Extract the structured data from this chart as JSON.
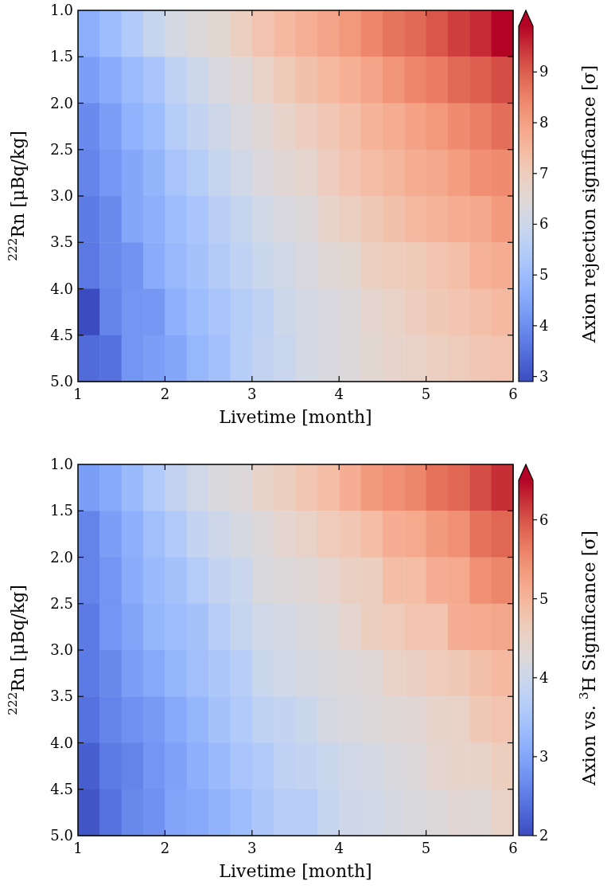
{
  "chart_data": [
    {
      "type": "heatmap",
      "xlabel": "Livetime [month]",
      "ylabel": "$^{222}$Rn [μBq/kg]",
      "clabel": "Axion rejection significance [σ]",
      "xlim": [
        1,
        6
      ],
      "xticks": [
        1,
        2,
        3,
        4,
        5,
        6
      ],
      "ylim": [
        5.0,
        1.0
      ],
      "yticks": [
        {
          "value": 1.0,
          "label": "1.0"
        },
        {
          "value": 1.5,
          "label": "1.5"
        },
        {
          "value": 2.0,
          "label": "2.0"
        },
        {
          "value": 2.5,
          "label": "2.5"
        },
        {
          "value": 3.0,
          "label": "3.0"
        },
        {
          "value": 3.5,
          "label": "3.5"
        },
        {
          "value": 4.0,
          "label": "4.0"
        },
        {
          "value": 4.5,
          "label": "4.5"
        },
        {
          "value": 5.0,
          "label": "5.0"
        }
      ],
      "clim": [
        2.9,
        9.9
      ],
      "cticks": [
        3,
        4,
        5,
        6,
        7,
        8,
        9
      ],
      "cells": [
        [
          4.65,
          5.0,
          5.4,
          5.85,
          6.2,
          6.4,
          6.6,
          6.9,
          7.25,
          7.5,
          7.7,
          7.9,
          8.15,
          8.45,
          8.7,
          8.85,
          9.1,
          9.35,
          9.55,
          9.9
        ],
        [
          4.3,
          4.6,
          4.95,
          5.2,
          5.7,
          6.0,
          6.3,
          6.45,
          6.8,
          7.05,
          7.3,
          7.5,
          7.7,
          7.9,
          8.2,
          8.45,
          8.6,
          8.85,
          9.0,
          9.2
        ],
        [
          3.95,
          4.3,
          4.75,
          5.0,
          5.5,
          5.8,
          6.05,
          6.3,
          6.5,
          6.75,
          6.95,
          7.15,
          7.35,
          7.6,
          7.75,
          7.95,
          8.15,
          8.35,
          8.55,
          8.8
        ],
        [
          3.85,
          4.2,
          4.5,
          4.8,
          5.2,
          5.5,
          5.85,
          6.1,
          6.35,
          6.55,
          6.65,
          6.95,
          7.2,
          7.4,
          7.55,
          7.75,
          7.85,
          8.05,
          8.3,
          8.35
        ],
        [
          3.7,
          3.95,
          4.5,
          4.65,
          5.0,
          5.25,
          5.6,
          5.85,
          6.1,
          6.3,
          6.4,
          6.75,
          6.9,
          7.1,
          7.3,
          7.5,
          7.6,
          7.75,
          7.85,
          8.1
        ],
        [
          3.65,
          3.95,
          4.1,
          4.6,
          4.9,
          5.15,
          5.45,
          5.7,
          5.95,
          6.1,
          6.3,
          6.5,
          6.6,
          6.9,
          7.0,
          7.05,
          7.25,
          7.35,
          7.65,
          7.75
        ],
        [
          2.9,
          3.85,
          4.15,
          4.2,
          4.7,
          5.0,
          5.25,
          5.5,
          5.7,
          6.0,
          6.15,
          6.3,
          6.4,
          6.65,
          6.8,
          6.95,
          7.1,
          7.2,
          7.35,
          7.5
        ],
        [
          3.4,
          3.5,
          4.15,
          4.3,
          4.5,
          4.85,
          5.1,
          5.5,
          5.75,
          5.9,
          6.15,
          6.3,
          6.4,
          6.6,
          6.7,
          6.8,
          6.9,
          7.0,
          7.15,
          7.25
        ]
      ]
    },
    {
      "type": "heatmap",
      "xlabel": "Livetime [month]",
      "ylabel": "$^{222}$Rn [μBq/kg]",
      "clabel": "Axion vs. $^{3}$H Significance [σ]",
      "xlim": [
        1,
        6
      ],
      "xticks": [
        1,
        2,
        3,
        4,
        5,
        6
      ],
      "ylim": [
        5.0,
        1.0
      ],
      "yticks": [
        {
          "value": 1.0,
          "label": "1.0"
        },
        {
          "value": 1.5,
          "label": "1.5"
        },
        {
          "value": 2.0,
          "label": "2.0"
        },
        {
          "value": 2.5,
          "label": "2.5"
        },
        {
          "value": 3.0,
          "label": "3.0"
        },
        {
          "value": 3.5,
          "label": "3.5"
        },
        {
          "value": 4.0,
          "label": "4.0"
        },
        {
          "value": 4.5,
          "label": "4.5"
        },
        {
          "value": 5.0,
          "label": "5.0"
        }
      ],
      "clim": [
        2.0,
        6.5
      ],
      "cticks": [
        2,
        3,
        4,
        5,
        6
      ],
      "cells": [
        [
          2.9,
          3.05,
          3.3,
          3.6,
          3.85,
          4.05,
          4.2,
          4.25,
          4.45,
          4.6,
          4.75,
          4.9,
          5.1,
          5.35,
          5.45,
          5.55,
          5.75,
          5.85,
          6.05,
          6.25
        ],
        [
          2.6,
          2.9,
          3.15,
          3.4,
          3.6,
          3.85,
          4.0,
          4.15,
          4.25,
          4.4,
          4.5,
          4.65,
          4.75,
          4.9,
          5.1,
          5.15,
          5.35,
          5.45,
          5.75,
          5.85
        ],
        [
          2.6,
          2.8,
          3.1,
          3.3,
          3.45,
          3.65,
          3.85,
          3.95,
          4.2,
          4.25,
          4.3,
          4.4,
          4.55,
          4.6,
          4.9,
          4.9,
          5.1,
          5.15,
          5.45,
          5.55
        ],
        [
          2.5,
          2.8,
          3.0,
          3.25,
          3.35,
          3.45,
          3.7,
          3.9,
          4.05,
          4.1,
          4.2,
          4.25,
          4.4,
          4.6,
          4.65,
          4.8,
          4.8,
          5.1,
          5.15,
          5.2
        ],
        [
          2.5,
          2.65,
          2.9,
          3.05,
          3.25,
          3.4,
          3.55,
          3.7,
          3.95,
          4.05,
          4.15,
          4.2,
          4.25,
          4.3,
          4.5,
          4.55,
          4.65,
          4.7,
          4.85,
          4.95
        ],
        [
          2.4,
          2.6,
          2.75,
          2.85,
          3.05,
          3.25,
          3.45,
          3.6,
          3.8,
          3.85,
          3.95,
          4.15,
          4.2,
          4.25,
          4.3,
          4.35,
          4.45,
          4.5,
          4.7,
          4.8
        ],
        [
          2.2,
          2.5,
          2.6,
          2.8,
          2.95,
          3.15,
          3.3,
          3.5,
          3.6,
          3.8,
          3.85,
          3.95,
          4.05,
          4.1,
          4.2,
          4.25,
          4.4,
          4.45,
          4.45,
          4.6
        ],
        [
          2.1,
          2.4,
          2.65,
          2.75,
          3.0,
          3.05,
          3.2,
          3.35,
          3.55,
          3.7,
          3.7,
          3.9,
          4.0,
          4.05,
          4.15,
          4.2,
          4.25,
          4.35,
          4.3,
          4.5
        ]
      ]
    }
  ]
}
